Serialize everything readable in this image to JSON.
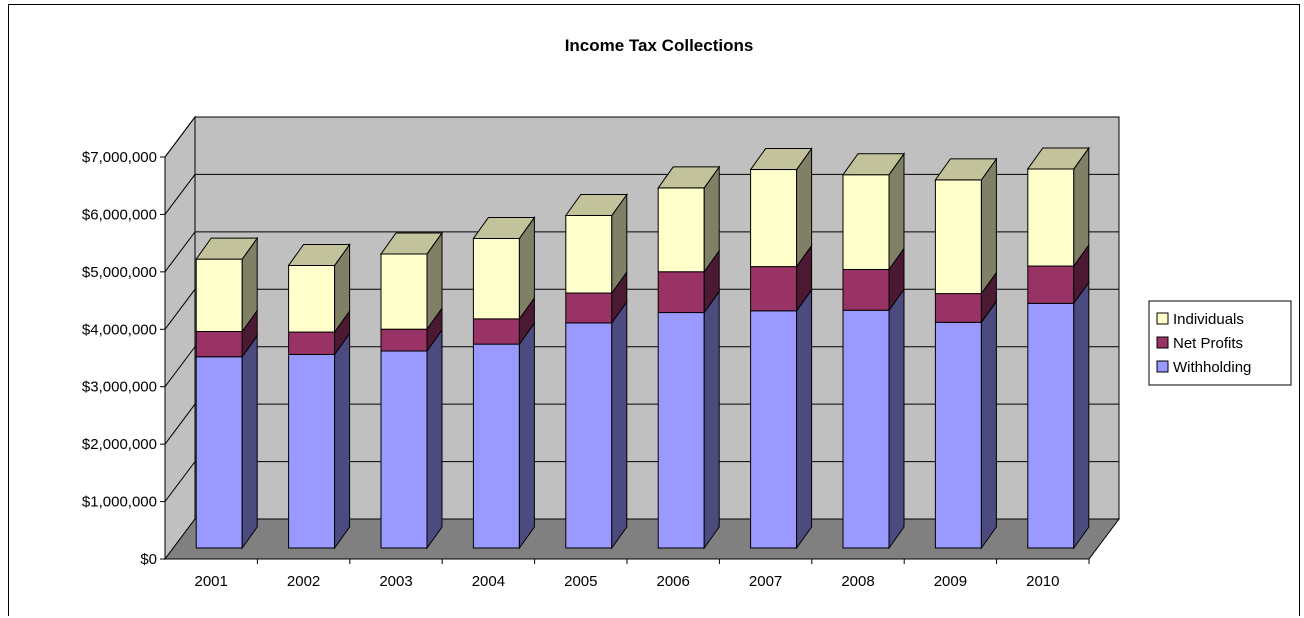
{
  "chart_data": {
    "type": "bar",
    "stacked": true,
    "three_d": true,
    "title": "Income Tax Collections",
    "categories": [
      "2001",
      "2002",
      "2003",
      "2004",
      "2005",
      "2006",
      "2007",
      "2008",
      "2009",
      "2010"
    ],
    "series": [
      {
        "name": "Withholding",
        "color": "#9999FF",
        "values": [
          3330000,
          3370000,
          3430000,
          3550000,
          3920000,
          4100000,
          4130000,
          4140000,
          3930000,
          4260000
        ]
      },
      {
        "name": "Net Profits",
        "color": "#993366",
        "values": [
          440000,
          390000,
          380000,
          440000,
          520000,
          710000,
          770000,
          710000,
          500000,
          650000
        ]
      },
      {
        "name": "Individuals",
        "color": "#FFFFCC",
        "values": [
          1260000,
          1160000,
          1310000,
          1400000,
          1350000,
          1460000,
          1690000,
          1650000,
          1980000,
          1690000
        ]
      }
    ],
    "ylim": [
      0,
      7000000
    ],
    "yticks": [
      0,
      1000000,
      2000000,
      3000000,
      4000000,
      5000000,
      6000000,
      7000000
    ],
    "ytick_labels": [
      "$0",
      "$1,000,000",
      "$2,000,000",
      "$3,000,000",
      "$4,000,000",
      "$5,000,000",
      "$6,000,000",
      "$7,000,000"
    ],
    "grid": true,
    "legend_position": "right",
    "wall_color": "#C0C0C0",
    "floor_color": "#808080",
    "side_colors": {
      "Withholding": "#4B4B80",
      "Net Profits": "#4C1933",
      "Individuals": "#808066"
    },
    "top_colors": {
      "Individuals": "#C2C29B"
    }
  }
}
